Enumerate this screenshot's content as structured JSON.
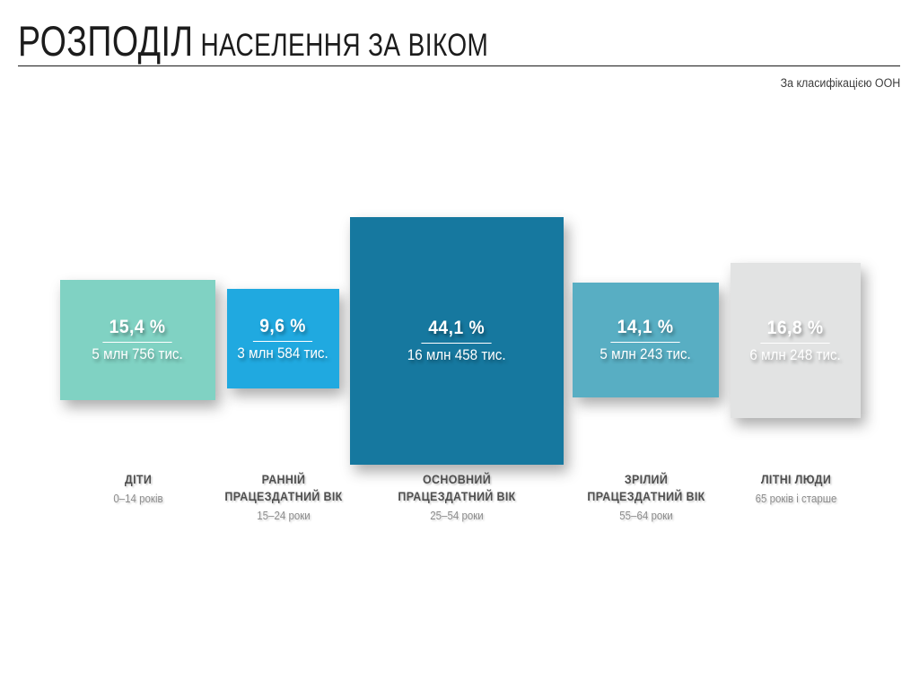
{
  "header": {
    "title_main": "РОЗПОДІЛ",
    "title_rest": "НАСЕЛЕННЯ ЗА ВІКОМ",
    "subtitle": "За класифікацією ООН"
  },
  "chart_data": {
    "type": "area",
    "title": "РОЗПОДІЛ НАСЕЛЕННЯ ЗА ВІКОМ",
    "subtitle": "За класифікацією ООН",
    "note": "proportional-area infographic, block area ~ percentage, all blocks vertically centered on one axis",
    "categories": [
      "ДІТИ",
      "РАННІЙ ПРАЦЕЗДАТНИЙ ВІК",
      "ОСНОВНИЙ ПРАЦЕЗДАТНИЙ ВІК",
      "ЗРІЛИЙ ПРАЦЕЗДАТНИЙ ВІК",
      "ЛІТНІ ЛЮДИ"
    ],
    "age_ranges": [
      "0–14 років",
      "15–24 роки",
      "25–54 роки",
      "55–64 роки",
      "65 років і старше"
    ],
    "percentages": [
      15.4,
      9.6,
      44.1,
      14.1,
      16.8
    ],
    "population_labels": [
      "5 млн 756 тис.",
      "3 млн 584 тис.",
      "16 млн 458 тис.",
      "5 млн 243 тис.",
      "6 млн 248 тис."
    ],
    "population_thousands": [
      5756,
      3584,
      16458,
      5243,
      6248
    ],
    "colors": [
      "#80d2c3",
      "#20a9e0",
      "#16789f",
      "#58aec3",
      "#e2e3e3"
    ],
    "legend_position": "none",
    "grid": false
  },
  "blocks": [
    {
      "percent": "15,4 %",
      "value": "5 млн 756 тис.",
      "label": "ДІТИ",
      "range": "0–14 років",
      "color": "#80d2c3",
      "text_color": "#ffffff"
    },
    {
      "percent": "9,6 %",
      "value": "3 млн 584 тис.",
      "label": "РАННІЙ\nПРАЦЕЗДАТНИЙ ВІК",
      "range": "15–24 роки",
      "color": "#20a9e0",
      "text_color": "#ffffff"
    },
    {
      "percent": "44,1 %",
      "value": "16 млн 458 тис.",
      "label": "ОСНОВНИЙ\nПРАЦЕЗДАТНИЙ ВІК",
      "range": "25–54 роки",
      "color": "#16789f",
      "text_color": "#ffffff"
    },
    {
      "percent": "14,1 %",
      "value": "5 млн 243 тис.",
      "label": "ЗРІЛИЙ\nПРАЦЕЗДАТНИЙ ВІК",
      "range": "55–64 роки",
      "color": "#58aec3",
      "text_color": "#ffffff"
    },
    {
      "percent": "16,8 %",
      "value": "6 млн 248 тис.",
      "label": "ЛІТНІ ЛЮДИ",
      "range": "65 років і старше",
      "color": "#e2e3e3",
      "text_color": "#2b7fa5"
    }
  ]
}
